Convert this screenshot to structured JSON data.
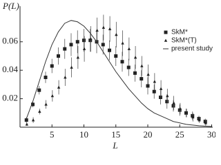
{
  "chart_data": {
    "type": "scatter",
    "ylabel": "P(L)",
    "xlabel": "L",
    "xlim": [
      0,
      30
    ],
    "xticks": [
      5,
      10,
      15,
      20,
      25,
      30
    ],
    "ylim": [
      0,
      0.085
    ],
    "yticks": [
      0.02,
      0.04,
      0.06
    ],
    "legend": "upper right",
    "series": [
      {
        "name": "SkM*",
        "color": "#222222",
        "mark": "square",
        "x": [
          1,
          2,
          3,
          4,
          5,
          6,
          7,
          8,
          9,
          10,
          11,
          12,
          13,
          14,
          15,
          16,
          17,
          18,
          19,
          20,
          21,
          22,
          23,
          24,
          25,
          26,
          27,
          28,
          29
        ],
        "values": [
          0.005,
          0.016,
          0.026,
          0.035,
          0.043,
          0.05,
          0.055,
          0.058,
          0.06,
          0.061,
          0.061,
          0.06,
          0.058,
          0.054,
          0.05,
          0.046,
          0.042,
          0.038,
          0.034,
          0.029,
          0.025,
          0.021,
          0.018,
          0.015,
          0.012,
          0.01,
          0.008,
          0.006,
          0.004
        ],
        "errors": [
          0.002,
          0.002,
          0.003,
          0.004,
          0.005,
          0.006,
          0.007,
          0.008,
          0.008,
          0.008,
          0.008,
          0.008,
          0.007,
          0.007,
          0.007,
          0.007,
          0.006,
          0.006,
          0.006,
          0.006,
          0.005,
          0.005,
          0.005,
          0.004,
          0.004,
          0.003,
          0.003,
          0.002,
          0.002
        ]
      },
      {
        "name": "SkM*(T)",
        "color": "#222222",
        "mark": "triangle",
        "x": [
          1,
          2,
          3,
          4,
          5,
          6,
          7,
          8,
          9,
          10,
          11,
          12,
          13,
          14,
          15,
          16,
          17,
          18,
          19,
          20,
          21,
          22,
          23,
          24,
          25,
          26,
          27,
          28,
          29
        ],
        "values": [
          0.002,
          0.005,
          0.011,
          0.016,
          0.022,
          0.028,
          0.035,
          0.042,
          0.049,
          0.055,
          0.062,
          0.068,
          0.07,
          0.069,
          0.065,
          0.059,
          0.055,
          0.049,
          0.043,
          0.037,
          0.032,
          0.027,
          0.022,
          0.017,
          0.013,
          0.01,
          0.007,
          0.005,
          0.003
        ],
        "errors": [
          0.001,
          0.002,
          0.002,
          0.003,
          0.004,
          0.005,
          0.006,
          0.007,
          0.008,
          0.009,
          0.009,
          0.009,
          0.009,
          0.009,
          0.009,
          0.009,
          0.008,
          0.008,
          0.007,
          0.007,
          0.006,
          0.006,
          0.005,
          0.005,
          0.004,
          0.003,
          0.003,
          0.002,
          0.002
        ]
      },
      {
        "name": "present study",
        "color": "#333333",
        "mark": "line",
        "x": [
          1,
          2,
          3,
          4,
          5,
          6,
          7,
          8,
          9,
          10,
          11,
          12,
          13,
          14,
          15,
          16,
          17,
          18,
          19,
          20,
          21,
          22,
          23,
          24,
          25,
          26,
          27,
          28,
          29,
          30
        ],
        "values": [
          0.006,
          0.018,
          0.032,
          0.046,
          0.058,
          0.067,
          0.073,
          0.075,
          0.074,
          0.071,
          0.066,
          0.06,
          0.053,
          0.046,
          0.039,
          0.033,
          0.027,
          0.022,
          0.017,
          0.013,
          0.01,
          0.008,
          0.006,
          0.004,
          0.003,
          0.002,
          0.0015,
          0.001,
          0.0007,
          0.0005
        ]
      }
    ]
  }
}
